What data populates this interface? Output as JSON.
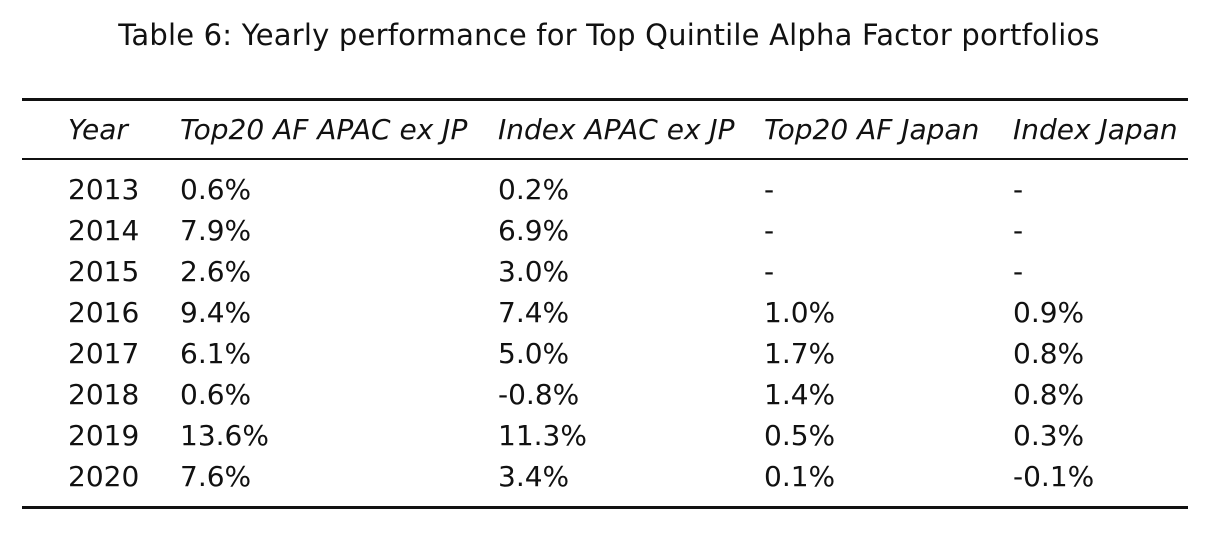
{
  "caption": "Table 6: Yearly performance for Top Quintile Alpha Factor portfolios",
  "table": {
    "headers": [
      "Year",
      "Top20 AF APAC ex JP",
      "Index APAC ex JP",
      "Top20 AF Japan",
      "Index Japan"
    ],
    "rows": [
      [
        "2013",
        "0.6%",
        "0.2%",
        "-",
        "-"
      ],
      [
        "2014",
        "7.9%",
        "6.9%",
        "-",
        "-"
      ],
      [
        "2015",
        "2.6%",
        "3.0%",
        "-",
        "-"
      ],
      [
        "2016",
        "9.4%",
        "7.4%",
        "1.0%",
        "0.9%"
      ],
      [
        "2017",
        "6.1%",
        "5.0%",
        "1.7%",
        "0.8%"
      ],
      [
        "2018",
        "0.6%",
        "-0.8%",
        "1.4%",
        "0.8%"
      ],
      [
        "2019",
        "13.6%",
        "11.3%",
        "0.5%",
        "0.3%"
      ],
      [
        "2020",
        "7.6%",
        "3.4%",
        "0.1%",
        "-0.1%"
      ]
    ]
  }
}
